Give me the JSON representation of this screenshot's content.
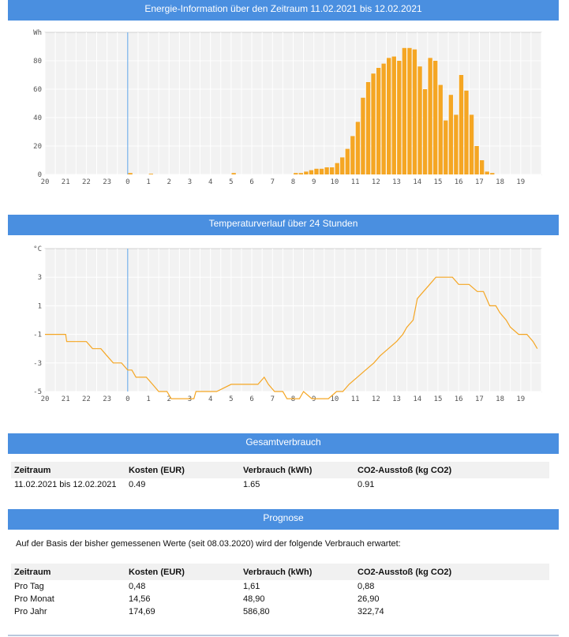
{
  "energy_section": {
    "title": "Energie-Information über den Zeitraum 11.02.2021 bis 12.02.2021"
  },
  "temp_section": {
    "title": "Temperaturverlauf über 24 Stunden"
  },
  "total_section": {
    "title": "Gesamtverbrauch",
    "headers": [
      "Zeitraum",
      "Kosten (EUR)",
      "Verbrauch (kWh)",
      "CO2-Ausstoß (kg CO2)"
    ],
    "rows": [
      [
        "11.02.2021 bis 12.02.2021",
        "0.49",
        "1.65",
        "0.91"
      ]
    ]
  },
  "forecast_section": {
    "title": "Prognose",
    "intro": "Auf der Basis der bisher gemessenen Werte (seit 08.03.2020) wird der folgende Verbrauch erwartet:",
    "headers": [
      "Zeitraum",
      "Kosten (EUR)",
      "Verbrauch (kWh)",
      "CO2-Ausstoß (kg CO2)"
    ],
    "rows": [
      [
        "Pro Tag",
        "0,48",
        "1,61",
        "0,88"
      ],
      [
        "Pro Monat",
        "14,56",
        "48,90",
        "26,90"
      ],
      [
        "Pro Jahr",
        "174,69",
        "586,80",
        "322,74"
      ]
    ]
  },
  "colors": {
    "header": "#4a8fe0",
    "bars": "#f5a623",
    "line": "#f5a623",
    "marker": "#5ba3e8",
    "plot_bg": "#f2f2f2"
  },
  "chart_data": [
    {
      "type": "bar",
      "ylabel": "Wh",
      "ylim": [
        0,
        100
      ],
      "yticks": [
        0,
        20,
        40,
        60,
        80
      ],
      "xticks": [
        "20",
        "21",
        "22",
        "23",
        "0",
        "1",
        "2",
        "3",
        "4",
        "5",
        "6",
        "7",
        "8",
        "9",
        "10",
        "11",
        "12",
        "13",
        "14",
        "15",
        "16",
        "17",
        "18",
        "19"
      ],
      "xrange": [
        20,
        44
      ],
      "marker_at": 24,
      "grid": true,
      "x": [
        24.0,
        25.0,
        29.0,
        32.0,
        32.25,
        32.5,
        32.75,
        33.0,
        33.25,
        33.5,
        33.75,
        34.0,
        34.25,
        34.5,
        34.75,
        35.0,
        35.25,
        35.5,
        35.75,
        36.0,
        36.25,
        36.5,
        36.75,
        37.0,
        37.25,
        37.5,
        37.75,
        38.0,
        38.25,
        38.5,
        38.75,
        39.0,
        39.25,
        39.5,
        39.75,
        40.0,
        40.25,
        40.5,
        40.75,
        41.0,
        41.25,
        41.5
      ],
      "values": [
        1,
        0.5,
        1,
        1,
        1,
        2,
        3,
        4,
        4,
        5,
        5,
        8,
        12,
        18,
        27,
        37,
        54,
        65,
        71,
        75,
        78,
        82,
        83,
        80,
        89,
        89,
        88,
        76,
        60,
        82,
        80,
        63,
        38,
        56,
        42,
        70,
        59,
        42,
        20,
        10,
        2,
        1
      ]
    },
    {
      "type": "line",
      "ylabel": "°C",
      "ylim": [
        -5,
        5
      ],
      "yticks": [
        -5,
        -3,
        -1,
        1,
        3
      ],
      "xticks": [
        "20",
        "21",
        "22",
        "23",
        "0",
        "1",
        "2",
        "3",
        "4",
        "5",
        "6",
        "7",
        "8",
        "9",
        "10",
        "11",
        "12",
        "13",
        "14",
        "15",
        "16",
        "17",
        "18",
        "19"
      ],
      "xrange": [
        20,
        44
      ],
      "marker_at": 24,
      "grid": true,
      "x": [
        20,
        21,
        21.05,
        22,
        22.3,
        22.7,
        23,
        23.3,
        23.7,
        24,
        24.2,
        24.4,
        24.9,
        25.2,
        25.5,
        25.9,
        26.1,
        26.4,
        26.7,
        27.2,
        27.3,
        28,
        28.3,
        29,
        29.4,
        30,
        30.3,
        30.6,
        30.8,
        31.1,
        31.5,
        31.7,
        32.1,
        32.3,
        32.5,
        32.9,
        33.4,
        33.7,
        34.1,
        34.4,
        34.7,
        35.1,
        35.5,
        35.9,
        36.2,
        36.6,
        37,
        37.3,
        37.5,
        37.8,
        38,
        38.3,
        38.6,
        38.9,
        39.3,
        39.7,
        40,
        40.2,
        40.5,
        40.9,
        41.2,
        41.5,
        41.8,
        42,
        42.3,
        42.5,
        42.9,
        43.3,
        43.6,
        43.8
      ],
      "y": [
        -1,
        -1,
        -1.5,
        -1.5,
        -2,
        -2,
        -2.5,
        -3,
        -3,
        -3.5,
        -3.5,
        -4,
        -4,
        -4.5,
        -5,
        -5,
        -5.5,
        -5.5,
        -5.5,
        -5.5,
        -5,
        -5,
        -5,
        -4.5,
        -4.5,
        -4.5,
        -4.5,
        -4,
        -4.5,
        -5,
        -5,
        -5.5,
        -5.5,
        -5.5,
        -5,
        -5.5,
        -5.5,
        -5.5,
        -5,
        -5,
        -4.5,
        -4,
        -3.5,
        -3,
        -2.5,
        -2,
        -1.5,
        -1,
        -0.5,
        0,
        1.5,
        2,
        2.5,
        3,
        3,
        3,
        2.5,
        2.5,
        2.5,
        2,
        2,
        1,
        1,
        0.5,
        0,
        -0.5,
        -1,
        -1,
        -1.5,
        -2
      ]
    }
  ]
}
